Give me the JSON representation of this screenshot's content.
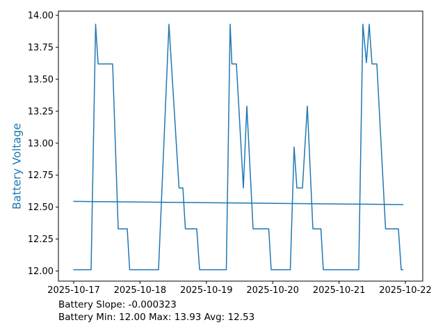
{
  "figure": {
    "background": "#ffffff",
    "axis_color": "#000000"
  },
  "chart_data": {
    "type": "line",
    "title": "",
    "xlabel": "",
    "ylabel": "Battery Voltage",
    "ylabel_color": "#1f77b4",
    "line_color": "#1f77b4",
    "grid": false,
    "legend": null,
    "xlim_days": [
      -0.2306,
      5.262
    ],
    "ylim": [
      11.921,
      14.033
    ],
    "x_ticks": [
      {
        "day": 0,
        "label": "2025-10-17"
      },
      {
        "day": 1,
        "label": "2025-10-18"
      },
      {
        "day": 2,
        "label": "2025-10-19"
      },
      {
        "day": 3,
        "label": "2025-10-20"
      },
      {
        "day": 4,
        "label": "2025-10-21"
      },
      {
        "day": 5,
        "label": "2025-10-22"
      }
    ],
    "y_ticks": [
      {
        "value": 12.0,
        "label": "12.00"
      },
      {
        "value": 12.25,
        "label": "12.25"
      },
      {
        "value": 12.5,
        "label": "12.50"
      },
      {
        "value": 12.75,
        "label": "12.75"
      },
      {
        "value": 13.0,
        "label": "13.00"
      },
      {
        "value": 13.25,
        "label": "13.25"
      },
      {
        "value": 13.5,
        "label": "13.50"
      },
      {
        "value": 13.75,
        "label": "13.75"
      },
      {
        "value": 14.0,
        "label": "14.00"
      }
    ],
    "series": [
      {
        "name": "battery-voltage",
        "color": "#1f77b4",
        "x_unit": "days since 2025-10-17 00:00",
        "points": [
          [
            0.0,
            12.01
          ],
          [
            0.262,
            12.01
          ],
          [
            0.33,
            13.93
          ],
          [
            0.368,
            13.62
          ],
          [
            0.587,
            13.62
          ],
          [
            0.671,
            12.33
          ],
          [
            0.807,
            12.33
          ],
          [
            0.844,
            12.01
          ],
          [
            1.279,
            12.01
          ],
          [
            1.436,
            13.93
          ],
          [
            1.588,
            12.65
          ],
          [
            1.646,
            12.65
          ],
          [
            1.683,
            12.33
          ],
          [
            1.855,
            12.33
          ],
          [
            1.897,
            12.01
          ],
          [
            2.301,
            12.01
          ],
          [
            2.358,
            13.93
          ],
          [
            2.385,
            13.62
          ],
          [
            2.453,
            13.62
          ],
          [
            2.558,
            12.65
          ],
          [
            2.61,
            13.29
          ],
          [
            2.704,
            12.33
          ],
          [
            2.94,
            12.33
          ],
          [
            2.977,
            12.01
          ],
          [
            3.265,
            12.01
          ],
          [
            3.323,
            12.97
          ],
          [
            3.365,
            12.65
          ],
          [
            3.449,
            12.65
          ],
          [
            3.522,
            13.29
          ],
          [
            3.606,
            12.33
          ],
          [
            3.726,
            12.33
          ],
          [
            3.763,
            12.01
          ],
          [
            4.297,
            12.01
          ],
          [
            4.36,
            13.93
          ],
          [
            4.413,
            13.63
          ],
          [
            4.455,
            13.93
          ],
          [
            4.497,
            13.62
          ],
          [
            4.57,
            13.62
          ],
          [
            4.701,
            12.33
          ],
          [
            4.895,
            12.33
          ],
          [
            4.937,
            12.01
          ],
          [
            4.963,
            12.01
          ]
        ]
      },
      {
        "name": "battery-trend",
        "color": "#1f77b4",
        "x_unit": "days since 2025-10-17 00:00",
        "points": [
          [
            0.0,
            12.545
          ],
          [
            4.963,
            12.52
          ]
        ]
      }
    ],
    "annotations": [
      "Battery Slope: -0.000323",
      "Battery Min: 12.00 Max: 13.93 Avg: 12.53"
    ],
    "stats": {
      "slope": -0.000323,
      "min": 12.0,
      "max": 13.93,
      "avg": 12.53
    }
  }
}
